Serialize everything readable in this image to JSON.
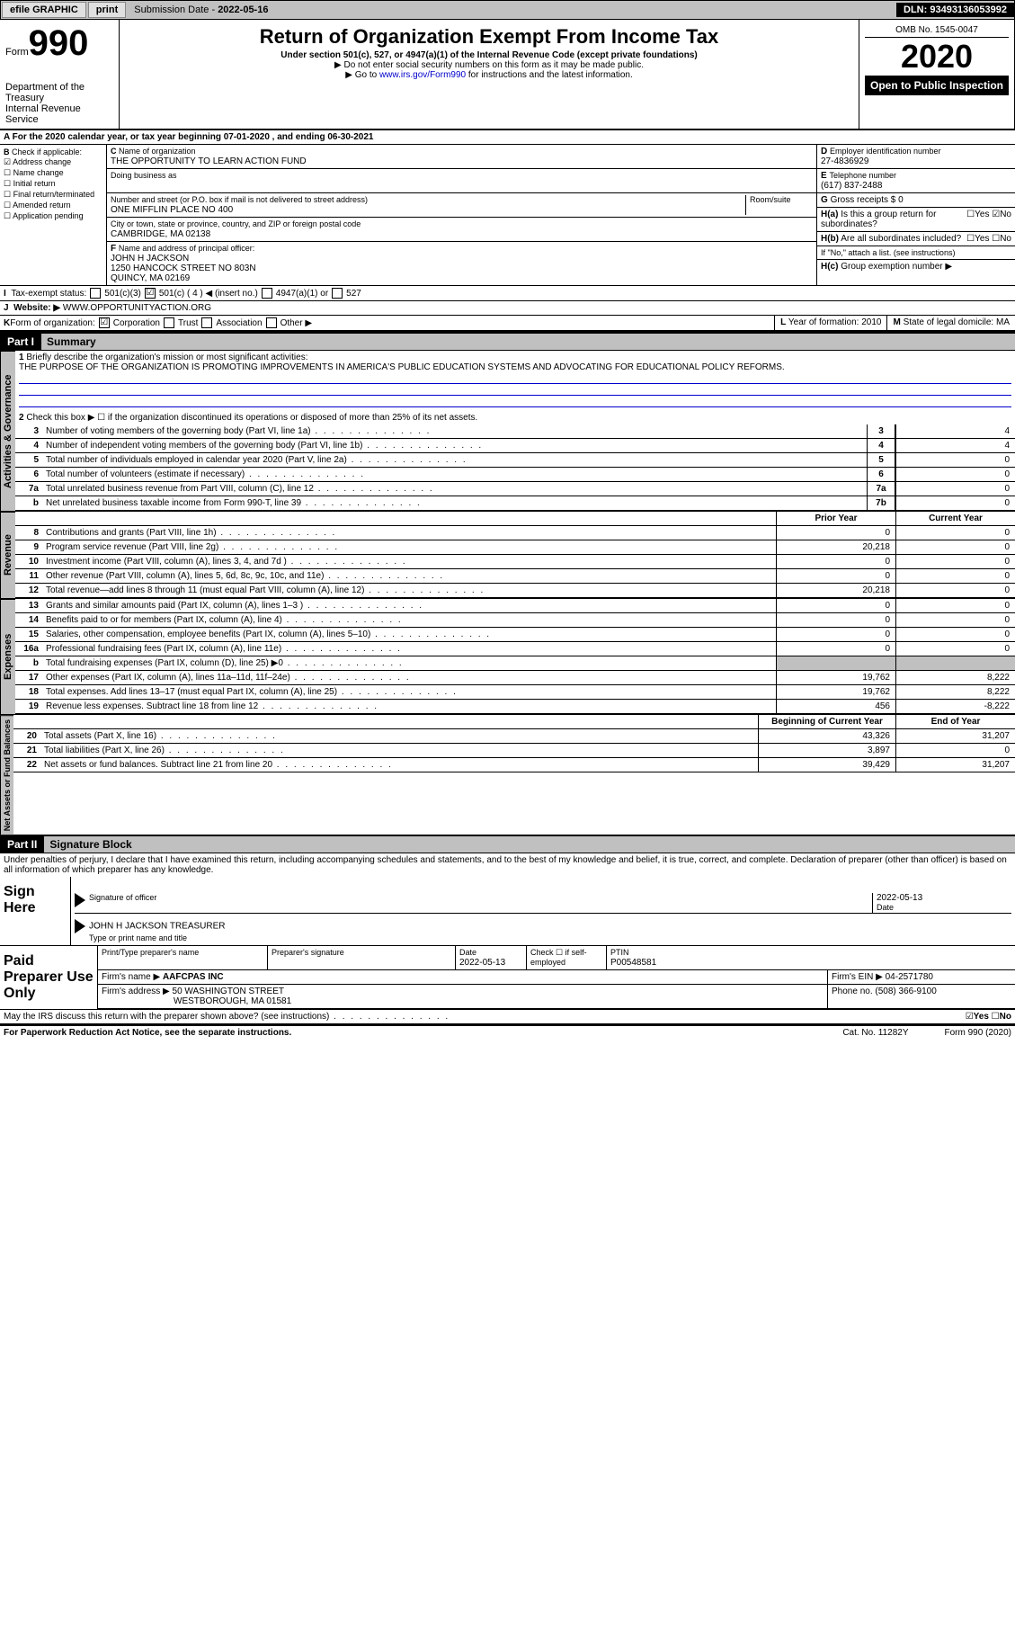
{
  "topbar": {
    "efile": "efile GRAPHIC",
    "print": "print",
    "subdate_label": "Submission Date - ",
    "subdate": "2022-05-16",
    "dln_label": "DLN: ",
    "dln": "93493136053992"
  },
  "header": {
    "form_word": "Form",
    "form_num": "990",
    "dept": "Department of the Treasury",
    "irs": "Internal Revenue Service",
    "title": "Return of Organization Exempt From Income Tax",
    "sub": "Under section 501(c), 527, or 4947(a)(1) of the Internal Revenue Code (except private foundations)",
    "nossn": "▶ Do not enter social security numbers on this form as it may be made public.",
    "goto_pre": "▶ Go to ",
    "goto_link": "www.irs.gov/Form990",
    "goto_post": " for instructions and the latest information.",
    "omb": "OMB No. 1545-0047",
    "year": "2020",
    "open": "Open to Public Inspection"
  },
  "A": {
    "text": "For the 2020 calendar year, or tax year beginning 07-01-2020   , and ending 06-30-2021"
  },
  "B": {
    "label": "Check if applicable:",
    "items": [
      "Address change",
      "Name change",
      "Initial return",
      "Final return/terminated",
      "Amended return",
      "Application pending"
    ],
    "checked": [
      true,
      false,
      false,
      false,
      false,
      false
    ]
  },
  "C": {
    "name_label": "Name of organization",
    "name": "THE OPPORTUNITY TO LEARN ACTION FUND",
    "dba_label": "Doing business as",
    "dba": "",
    "addr_label": "Number and street (or P.O. box if mail is not delivered to street address)",
    "room_label": "Room/suite",
    "addr": "ONE MIFFLIN PLACE NO 400",
    "city_label": "City or town, state or province, country, and ZIP or foreign postal code",
    "city": "CAMBRIDGE, MA  02138"
  },
  "D": {
    "label": "Employer identification number",
    "value": "27-4836929"
  },
  "E": {
    "label": "Telephone number",
    "value": "(617) 837-2488"
  },
  "G": {
    "label": "Gross receipts $",
    "value": "0"
  },
  "F": {
    "label": "Name and address of principal officer:",
    "lines": [
      "JOHN H JACKSON",
      "1250 HANCOCK STREET NO 803N",
      "QUINCY, MA  02169"
    ]
  },
  "H": {
    "a": "Is this a group return for subordinates?",
    "a_yes": "Yes",
    "a_no": "No",
    "a_checked": "No",
    "b": "Are all subordinates included?",
    "b_yes": "Yes",
    "b_no": "No",
    "b_note": "If \"No,\" attach a list. (see instructions)",
    "c": "Group exemption number ▶"
  },
  "I": {
    "label": "Tax-exempt status:",
    "opts": [
      "501(c)(3)",
      "501(c) ( 4 ) ◀ (insert no.)",
      "4947(a)(1) or",
      "527"
    ],
    "checked": 1
  },
  "J": {
    "label": "Website: ▶",
    "value": "WWW.OPPORTUNITYACTION.ORG"
  },
  "K": {
    "label": "Form of organization:",
    "opts": [
      "Corporation",
      "Trust",
      "Association",
      "Other ▶"
    ],
    "checked": 0
  },
  "L": {
    "label": "Year of formation:",
    "value": "2010"
  },
  "M": {
    "label": "State of legal domicile:",
    "value": "MA"
  },
  "part1": {
    "label": "Part I",
    "title": "Summary"
  },
  "summary": {
    "line1_label": "Briefly describe the organization's mission or most significant activities:",
    "line1_text": "THE PURPOSE OF THE ORGANIZATION IS PROMOTING IMPROVEMENTS IN AMERICA'S PUBLIC EDUCATION SYSTEMS AND ADVOCATING FOR EDUCATIONAL POLICY REFORMS.",
    "line2": "Check this box ▶ ☐ if the organization discontinued its operations or disposed of more than 25% of its net assets.",
    "rows": [
      {
        "n": "3",
        "d": "Number of voting members of the governing body (Part VI, line 1a)",
        "l": "3",
        "v": "4"
      },
      {
        "n": "4",
        "d": "Number of independent voting members of the governing body (Part VI, line 1b)",
        "l": "4",
        "v": "4"
      },
      {
        "n": "5",
        "d": "Total number of individuals employed in calendar year 2020 (Part V, line 2a)",
        "l": "5",
        "v": "0"
      },
      {
        "n": "6",
        "d": "Total number of volunteers (estimate if necessary)",
        "l": "6",
        "v": "0"
      },
      {
        "n": "7a",
        "d": "Total unrelated business revenue from Part VIII, column (C), line 12",
        "l": "7a",
        "v": "0"
      },
      {
        "n": "b",
        "d": "Net unrelated business taxable income from Form 990-T, line 39",
        "l": "7b",
        "v": "0"
      }
    ]
  },
  "revenue": {
    "tab": "Revenue",
    "prior": "Prior Year",
    "curr": "Current Year",
    "rows": [
      {
        "n": "8",
        "d": "Contributions and grants (Part VIII, line 1h)",
        "p": "0",
        "c": "0"
      },
      {
        "n": "9",
        "d": "Program service revenue (Part VIII, line 2g)",
        "p": "20,218",
        "c": "0"
      },
      {
        "n": "10",
        "d": "Investment income (Part VIII, column (A), lines 3, 4, and 7d )",
        "p": "0",
        "c": "0"
      },
      {
        "n": "11",
        "d": "Other revenue (Part VIII, column (A), lines 5, 6d, 8c, 9c, 10c, and 11e)",
        "p": "0",
        "c": "0"
      },
      {
        "n": "12",
        "d": "Total revenue—add lines 8 through 11 (must equal Part VIII, column (A), line 12)",
        "p": "20,218",
        "c": "0"
      }
    ]
  },
  "expenses": {
    "tab": "Expenses",
    "rows": [
      {
        "n": "13",
        "d": "Grants and similar amounts paid (Part IX, column (A), lines 1–3 )",
        "p": "0",
        "c": "0"
      },
      {
        "n": "14",
        "d": "Benefits paid to or for members (Part IX, column (A), line 4)",
        "p": "0",
        "c": "0"
      },
      {
        "n": "15",
        "d": "Salaries, other compensation, employee benefits (Part IX, column (A), lines 5–10)",
        "p": "0",
        "c": "0"
      },
      {
        "n": "16a",
        "d": "Professional fundraising fees (Part IX, column (A), line 11e)",
        "p": "0",
        "c": "0"
      },
      {
        "n": "b",
        "d": "Total fundraising expenses (Part IX, column (D), line 25) ▶0",
        "p": "",
        "c": "",
        "shade": true
      },
      {
        "n": "17",
        "d": "Other expenses (Part IX, column (A), lines 11a–11d, 11f–24e)",
        "p": "19,762",
        "c": "8,222"
      },
      {
        "n": "18",
        "d": "Total expenses. Add lines 13–17 (must equal Part IX, column (A), line 25)",
        "p": "19,762",
        "c": "8,222"
      },
      {
        "n": "19",
        "d": "Revenue less expenses. Subtract line 18 from line 12",
        "p": "456",
        "c": "-8,222"
      }
    ]
  },
  "netassets": {
    "tab": "Net Assets or Fund Balances",
    "h1": "Beginning of Current Year",
    "h2": "End of Year",
    "rows": [
      {
        "n": "20",
        "d": "Total assets (Part X, line 16)",
        "p": "43,326",
        "c": "31,207"
      },
      {
        "n": "21",
        "d": "Total liabilities (Part X, line 26)",
        "p": "3,897",
        "c": "0"
      },
      {
        "n": "22",
        "d": "Net assets or fund balances. Subtract line 21 from line 20",
        "p": "39,429",
        "c": "31,207"
      }
    ]
  },
  "part2": {
    "label": "Part II",
    "title": "Signature Block"
  },
  "perjury": "Under penalties of perjury, I declare that I have examined this return, including accompanying schedules and statements, and to the best of my knowledge and belief, it is true, correct, and complete. Declaration of preparer (other than officer) is based on all information of which preparer has any knowledge.",
  "sign": {
    "label": "Sign Here",
    "sig_label": "Signature of officer",
    "date_label": "Date",
    "date": "2022-05-13",
    "name": "JOHN H JACKSON  TREASURER",
    "name_label": "Type or print name and title"
  },
  "prep": {
    "label": "Paid Preparer Use Only",
    "h": [
      "Print/Type preparer's name",
      "Preparer's signature",
      "Date",
      "Check ☐ if self-employed",
      "PTIN"
    ],
    "r1": [
      "",
      "",
      "2022-05-13",
      "",
      "P00548581"
    ],
    "firm_label": "Firm's name ▶",
    "firm": "AAFCPAS INC",
    "ein_label": "Firm's EIN ▶",
    "ein": "04-2571780",
    "addr_label": "Firm's address ▶",
    "addr1": "50 WASHINGTON STREET",
    "addr2": "WESTBOROUGH, MA  01581",
    "phone_label": "Phone no.",
    "phone": "(508) 366-9100"
  },
  "discuss": {
    "text": "May the IRS discuss this return with the preparer shown above? (see instructions)",
    "yes": "Yes",
    "no": "No",
    "checked": "Yes"
  },
  "footer": {
    "left": "For Paperwork Reduction Act Notice, see the separate instructions.",
    "mid": "Cat. No. 11282Y",
    "right": "Form 990 (2020)"
  }
}
